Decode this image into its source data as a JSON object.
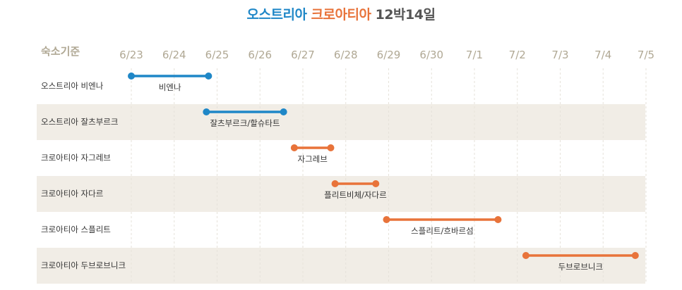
{
  "title": {
    "part1": "오스트리아",
    "part2": "크로아티아",
    "part3": "12박14일"
  },
  "colors": {
    "austria": "#1f87c7",
    "croatia": "#e8733a",
    "row_alt": "#f1ede6",
    "grid": "#e6e2da",
    "axis_text": "#b0a894"
  },
  "chart_data": {
    "type": "gantt",
    "row_header": "숙소기준",
    "dates": [
      "6/23",
      "6/24",
      "6/25",
      "6/26",
      "6/27",
      "6/28",
      "6/29",
      "6/30",
      "7/1",
      "7/2",
      "7/3",
      "7/4",
      "7/5"
    ],
    "rows": [
      {
        "name": "오스트리아 비엔나",
        "bar_label": "비엔나",
        "start": 0.0,
        "end": 1.8,
        "country": "austria"
      },
      {
        "name": "오스트리아 잘츠부르크",
        "bar_label": "잘츠부르크/할슈타트",
        "start": 1.75,
        "end": 3.55,
        "country": "austria"
      },
      {
        "name": "크로아티아 자그레브",
        "bar_label": "자그레브",
        "start": 3.8,
        "end": 4.65,
        "country": "croatia"
      },
      {
        "name": "크로아티아 자다르",
        "bar_label": "플리트비체/자다르",
        "start": 4.75,
        "end": 5.7,
        "country": "croatia"
      },
      {
        "name": "크로아티아 스플리트",
        "bar_label": "스플리트/흐바르섬",
        "start": 5.95,
        "end": 8.55,
        "country": "croatia"
      },
      {
        "name": "크로아티아 두브로브니크",
        "bar_label": "두브로브니크",
        "start": 9.2,
        "end": 11.75,
        "country": "croatia"
      }
    ]
  }
}
